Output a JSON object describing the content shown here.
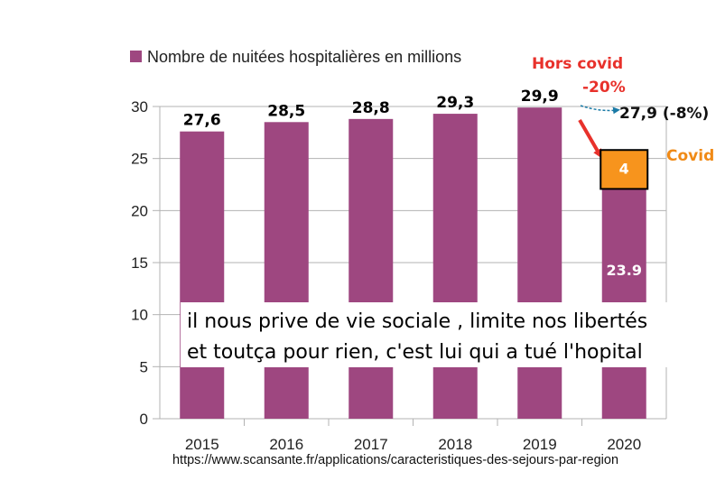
{
  "chart_data": {
    "type": "bar",
    "categories": [
      "2015",
      "2016",
      "2017",
      "2018",
      "2019",
      "2020"
    ],
    "values": [
      27.6,
      28.5,
      28.8,
      29.3,
      29.9,
      23.9
    ],
    "value_labels": [
      "27,6",
      "28,5",
      "28,8",
      "29,3",
      "29,9",
      "23.9"
    ],
    "series_name": "Nombre de nuitées hospitalières en millions",
    "ylim": [
      0,
      30
    ],
    "yticks": [
      "0",
      "5",
      "10",
      "15",
      "20",
      "25",
      "30"
    ],
    "grid": true,
    "legend": "top-left",
    "bar_color": "#9e4780",
    "annotations": {
      "hors_covid": "Hors covid",
      "pct_drop": "-20%",
      "projection_label": "27,9 (-8%)",
      "projection_value": 27.9,
      "covid_box_value": 4,
      "covid_box_label": "4",
      "covid_label": "Covid",
      "box_fill": "#f7941d",
      "red_color": "#e8312b",
      "orange_color": "#f08a16"
    }
  },
  "caption": {
    "line1": "il nous prive de vie sociale , limite nos libertés",
    "line2": "et toutça pour rien, c'est lui qui a tué l'hopital"
  },
  "source_url": "https://www.scansante.fr/applications/caracteristiques-des-sejours-par-region"
}
